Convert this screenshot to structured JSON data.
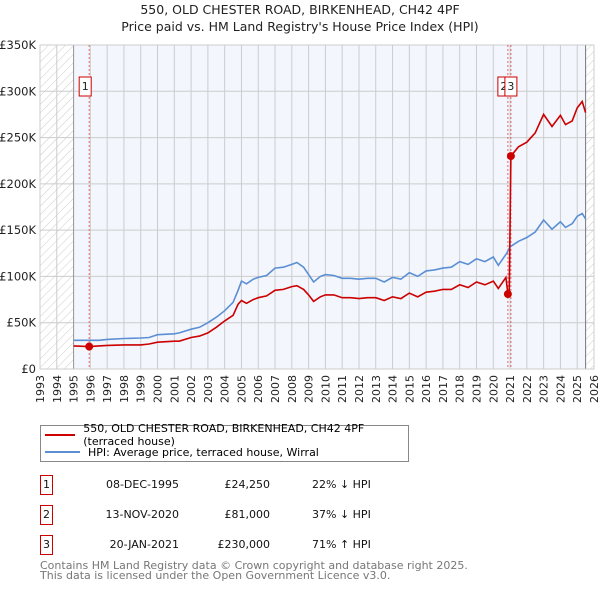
{
  "chart_data": {
    "type": "line",
    "title": "550, OLD CHESTER ROAD, BIRKENHEAD, CH42 4PF",
    "subtitle": "Price paid vs. HM Land Registry's House Price Index (HPI)",
    "xlim": [
      1993,
      2026
    ],
    "ylim": [
      0,
      350000
    ],
    "x_ticks": [
      "1993",
      "1994",
      "1995",
      "1996",
      "1997",
      "1998",
      "1999",
      "2000",
      "2001",
      "2002",
      "2003",
      "2004",
      "2005",
      "2006",
      "2007",
      "2008",
      "2009",
      "2010",
      "2011",
      "2012",
      "2013",
      "2014",
      "2015",
      "2016",
      "2017",
      "2018",
      "2019",
      "2020",
      "2021",
      "2022",
      "2023",
      "2024",
      "2025",
      "2026"
    ],
    "y_ticks": [
      {
        "v": 0,
        "label": "£0"
      },
      {
        "v": 50000,
        "label": "£50K"
      },
      {
        "v": 100000,
        "label": "£100K"
      },
      {
        "v": 150000,
        "label": "£150K"
      },
      {
        "v": 200000,
        "label": "£200K"
      },
      {
        "v": 250000,
        "label": "£250K"
      },
      {
        "v": 300000,
        "label": "£300K"
      },
      {
        "v": 350000,
        "label": "£350K"
      }
    ],
    "grid": true,
    "data_range": [
      1995,
      2025.5
    ],
    "series": [
      {
        "name": "550, OLD CHESTER ROAD, BIRKENHEAD, CH42 4PF (terraced house)",
        "color": "#cc0000",
        "x": [
          1995,
          1995.93,
          1996.5,
          1997,
          1998,
          1999,
          1999.5,
          2000,
          2001,
          2001.3,
          2002,
          2002.5,
          2003,
          2003.5,
          2004,
          2004.5,
          2004.8,
          2005,
          2005.3,
          2005.7,
          2006,
          2006.5,
          2007,
          2007.5,
          2008,
          2008.3,
          2008.7,
          2009,
          2009.3,
          2009.7,
          2010,
          2010.5,
          2011,
          2011.5,
          2012,
          2012.5,
          2013,
          2013.5,
          2014,
          2014.5,
          2015,
          2015.5,
          2016,
          2016.5,
          2017,
          2017.5,
          2018,
          2018.5,
          2019,
          2019.5,
          2020,
          2020.3,
          2020.75,
          2020.87,
          2020.95,
          2021.05,
          2021.5,
          2022,
          2022.5,
          2023,
          2023.5,
          2024,
          2024.3,
          2024.7,
          2025,
          2025.3,
          2025.5
        ],
        "y": [
          25000,
          24250,
          25000,
          25500,
          26000,
          26000,
          27000,
          29000,
          30000,
          30000,
          34000,
          35500,
          39000,
          45000,
          52000,
          58000,
          70000,
          74000,
          71000,
          75000,
          77000,
          79000,
          85000,
          86000,
          89000,
          90000,
          86000,
          80000,
          73000,
          78000,
          80000,
          80000,
          77000,
          77000,
          76000,
          77000,
          77000,
          74000,
          78000,
          76000,
          82000,
          78000,
          83000,
          84000,
          86000,
          86000,
          91000,
          88000,
          94000,
          91000,
          95000,
          87000,
          99000,
          81000,
          81000,
          230000,
          240000,
          245000,
          255000,
          275000,
          262000,
          274000,
          264000,
          268000,
          282000,
          289000,
          277000
        ]
      },
      {
        "name": "HPI: Average price, terraced house, Wirral",
        "color": "#5b8fd4",
        "x": [
          1995,
          1996,
          1996.5,
          1997,
          1998,
          1999,
          1999.5,
          2000,
          2001,
          2001.3,
          2002,
          2002.5,
          2003,
          2003.5,
          2004,
          2004.5,
          2004.8,
          2005,
          2005.3,
          2005.7,
          2006,
          2006.5,
          2007,
          2007.5,
          2008,
          2008.3,
          2008.7,
          2009,
          2009.3,
          2009.7,
          2010,
          2010.5,
          2011,
          2011.5,
          2012,
          2012.5,
          2013,
          2013.5,
          2014,
          2014.5,
          2015,
          2015.5,
          2016,
          2016.5,
          2017,
          2017.5,
          2018,
          2018.5,
          2019,
          2019.5,
          2020,
          2020.3,
          2020.8,
          2021,
          2021.5,
          2022,
          2022.5,
          2023,
          2023.5,
          2024,
          2024.3,
          2024.7,
          2025,
          2025.3,
          2025.5
        ],
        "y": [
          31000,
          31000,
          31000,
          32000,
          33000,
          33500,
          34000,
          37000,
          38000,
          39000,
          43000,
          45000,
          50000,
          56000,
          63000,
          72000,
          85000,
          95000,
          92000,
          97000,
          99000,
          101000,
          109000,
          110000,
          113000,
          115000,
          110000,
          102000,
          94000,
          100000,
          102000,
          101000,
          98000,
          98000,
          97000,
          98000,
          98000,
          94000,
          99000,
          97000,
          104000,
          100000,
          106000,
          107000,
          109000,
          110000,
          116000,
          113000,
          119000,
          116000,
          121000,
          112000,
          125000,
          132000,
          138000,
          142000,
          148000,
          161000,
          151000,
          159000,
          153000,
          157000,
          165000,
          168000,
          162000
        ]
      }
    ],
    "sales": [
      {
        "id": "1",
        "x": 1995.93,
        "y": 24250
      },
      {
        "id": "2",
        "x": 2020.87,
        "y": 81000
      },
      {
        "id": "3",
        "x": 2021.05,
        "y": 230000
      }
    ]
  },
  "legend": {
    "red": "550, OLD CHESTER ROAD, BIRKENHEAD, CH42 4PF (terraced house)",
    "blue": "HPI: Average price, terraced house, Wirral"
  },
  "transactions": [
    {
      "id": "1",
      "date": "08-DEC-1995",
      "price": "£24,250",
      "hpi": "22% ↓ HPI"
    },
    {
      "id": "2",
      "date": "13-NOV-2020",
      "price": "£81,000",
      "hpi": "37% ↓ HPI"
    },
    {
      "id": "3",
      "date": "20-JAN-2021",
      "price": "£230,000",
      "hpi": "71% ↑ HPI"
    }
  ],
  "footer": {
    "line1": "Contains HM Land Registry data © Crown copyright and database right 2025.",
    "line2": "This data is licensed under the Open Government Licence v3.0."
  }
}
